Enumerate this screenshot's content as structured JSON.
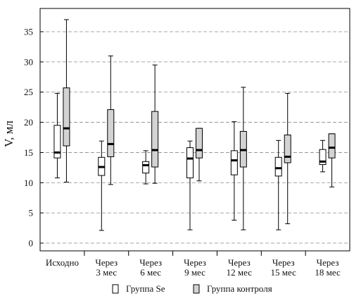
{
  "chart_data": {
    "type": "box",
    "ylabel": "V, мл",
    "xlabel": "",
    "ylim": [
      -1,
      38
    ],
    "yticks": [
      0,
      5,
      10,
      15,
      20,
      25,
      30,
      35
    ],
    "grid": "horizontal-dashed",
    "legend_position": "bottom-center",
    "categories": [
      [
        "Исходно"
      ],
      [
        "Через",
        "3 мес"
      ],
      [
        "Через",
        "6 мес"
      ],
      [
        "Через",
        "9 мес"
      ],
      [
        "Через",
        "12 мес"
      ],
      [
        "Через",
        "15 мес"
      ],
      [
        "Через",
        "18 мес"
      ]
    ],
    "series": [
      {
        "name": "Группа Se",
        "fill": "#ffffff",
        "boxes": [
          {
            "min": 10.8,
            "q1": 14.1,
            "median": 15.0,
            "q3": 19.5,
            "max": 24.8
          },
          {
            "min": 2.1,
            "q1": 11.2,
            "median": 12.6,
            "q3": 14.2,
            "max": 16.9
          },
          {
            "min": 9.8,
            "q1": 11.6,
            "median": 12.9,
            "q3": 13.5,
            "max": 15.3
          },
          {
            "min": 2.2,
            "q1": 10.8,
            "median": 14.0,
            "q3": 15.8,
            "max": 16.9
          },
          {
            "min": 3.8,
            "q1": 11.3,
            "median": 13.7,
            "q3": 15.3,
            "max": 20.1
          },
          {
            "min": 2.2,
            "q1": 11.1,
            "median": 12.4,
            "q3": 14.2,
            "max": 17.0
          },
          {
            "min": 11.8,
            "q1": 13.0,
            "median": 13.5,
            "q3": 15.5,
            "max": 17.0
          }
        ]
      },
      {
        "name": "Группа контроля",
        "fill": "#d3d3d3",
        "boxes": [
          {
            "min": 10.1,
            "q1": 16.1,
            "median": 19.0,
            "q3": 25.7,
            "max": 37.0
          },
          {
            "min": 9.7,
            "q1": 14.3,
            "median": 16.4,
            "q3": 22.1,
            "max": 31.0
          },
          {
            "min": 9.9,
            "q1": 12.6,
            "median": 15.4,
            "q3": 21.8,
            "max": 29.5
          },
          {
            "min": 10.3,
            "q1": 14.1,
            "median": 15.4,
            "q3": 19.0,
            "max": 19.0
          },
          {
            "min": 2.2,
            "q1": 12.6,
            "median": 15.4,
            "q3": 18.5,
            "max": 25.8
          },
          {
            "min": 3.2,
            "q1": 13.3,
            "median": 14.3,
            "q3": 17.9,
            "max": 24.8
          },
          {
            "min": 9.3,
            "q1": 14.1,
            "median": 15.8,
            "q3": 18.1,
            "max": 18.1
          }
        ]
      }
    ]
  }
}
